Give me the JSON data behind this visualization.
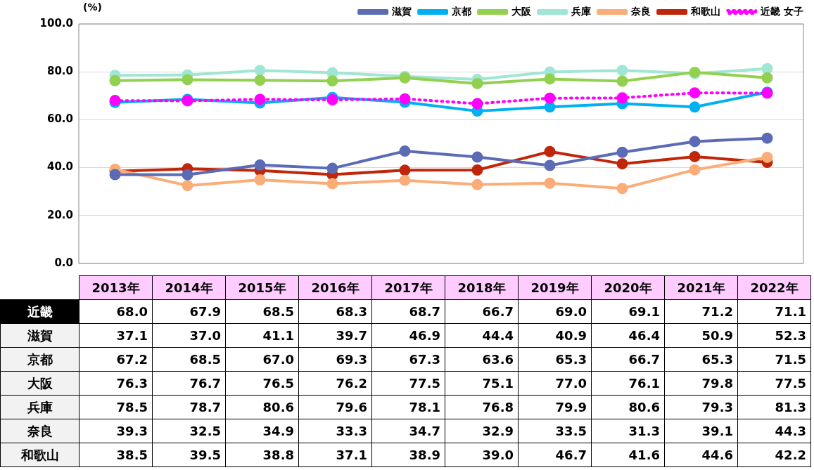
{
  "chart_data": {
    "type": "line",
    "ylabel": "(%)",
    "categories": [
      "2013年",
      "2014年",
      "2015年",
      "2016年",
      "2017年",
      "2018年",
      "2019年",
      "2020年",
      "2021年",
      "2022年"
    ],
    "ylim": [
      0,
      100
    ],
    "yticks": [
      {
        "value": 0,
        "label": "0.0"
      },
      {
        "value": 20,
        "label": "20.0"
      },
      {
        "value": 40,
        "label": "40.0"
      },
      {
        "value": 60,
        "label": "60.0"
      },
      {
        "value": 80,
        "label": "80.0"
      },
      {
        "value": 100,
        "label": "100.0"
      }
    ],
    "grid": "y",
    "legend": "top",
    "marker": "circle",
    "annotations": [
      "近畿"
    ],
    "series": [
      {
        "name": "近畿 女子",
        "color": "#ff00ff",
        "line_style": "dotted",
        "values": [
          68.0,
          67.9,
          68.5,
          68.3,
          68.7,
          66.7,
          69.0,
          69.1,
          71.2,
          71.1
        ],
        "value_labels": [
          "68.0",
          "67.9",
          "68.5",
          "68.3",
          "68.7",
          "66.7",
          "69.0",
          "69.1",
          "71.2",
          "71.1"
        ]
      },
      {
        "name": "滋賀",
        "color": "#5b6bb5",
        "values": [
          37.1,
          37.0,
          41.1,
          39.7,
          46.9,
          44.4,
          40.9,
          46.4,
          50.9,
          52.3
        ],
        "value_labels": [
          "37.1",
          "37.0",
          "41.1",
          "39.7",
          "46.9",
          "44.4",
          "40.9",
          "46.4",
          "50.9",
          "52.3"
        ]
      },
      {
        "name": "京都",
        "color": "#00b0f0",
        "values": [
          67.2,
          68.5,
          67.0,
          69.3,
          67.3,
          63.6,
          65.3,
          66.7,
          65.3,
          71.5
        ],
        "value_labels": [
          "67.2",
          "68.5",
          "67.0",
          "69.3",
          "67.3",
          "63.6",
          "65.3",
          "66.7",
          "65.3",
          "71.5"
        ]
      },
      {
        "name": "大阪",
        "color": "#92d050",
        "values": [
          76.3,
          76.7,
          76.5,
          76.2,
          77.5,
          75.1,
          77.0,
          76.1,
          79.8,
          77.5
        ],
        "value_labels": [
          "76.3",
          "76.7",
          "76.5",
          "76.2",
          "77.5",
          "75.1",
          "77.0",
          "76.1",
          "79.8",
          "77.5"
        ]
      },
      {
        "name": "兵庫",
        "color": "#a0e6d4",
        "values": [
          78.5,
          78.7,
          80.6,
          79.6,
          78.1,
          76.8,
          79.9,
          80.6,
          79.3,
          81.3
        ],
        "value_labels": [
          "78.5",
          "78.7",
          "80.6",
          "79.6",
          "78.1",
          "76.8",
          "79.9",
          "80.6",
          "79.3",
          "81.3"
        ]
      },
      {
        "name": "奈良",
        "color": "#fbad78",
        "values": [
          39.3,
          32.5,
          34.9,
          33.3,
          34.7,
          32.9,
          33.5,
          31.3,
          39.1,
          44.3
        ],
        "value_labels": [
          "39.3",
          "32.5",
          "34.9",
          "33.3",
          "34.7",
          "32.9",
          "33.5",
          "31.3",
          "39.1",
          "44.3"
        ]
      },
      {
        "name": "和歌山",
        "color": "#c0260a",
        "values": [
          38.5,
          39.5,
          38.8,
          37.1,
          38.9,
          39.0,
          46.7,
          41.6,
          44.6,
          42.2
        ],
        "value_labels": [
          "38.5",
          "39.5",
          "38.8",
          "37.1",
          "38.9",
          "39.0",
          "46.7",
          "41.6",
          "44.6",
          "42.2"
        ]
      }
    ]
  }
}
